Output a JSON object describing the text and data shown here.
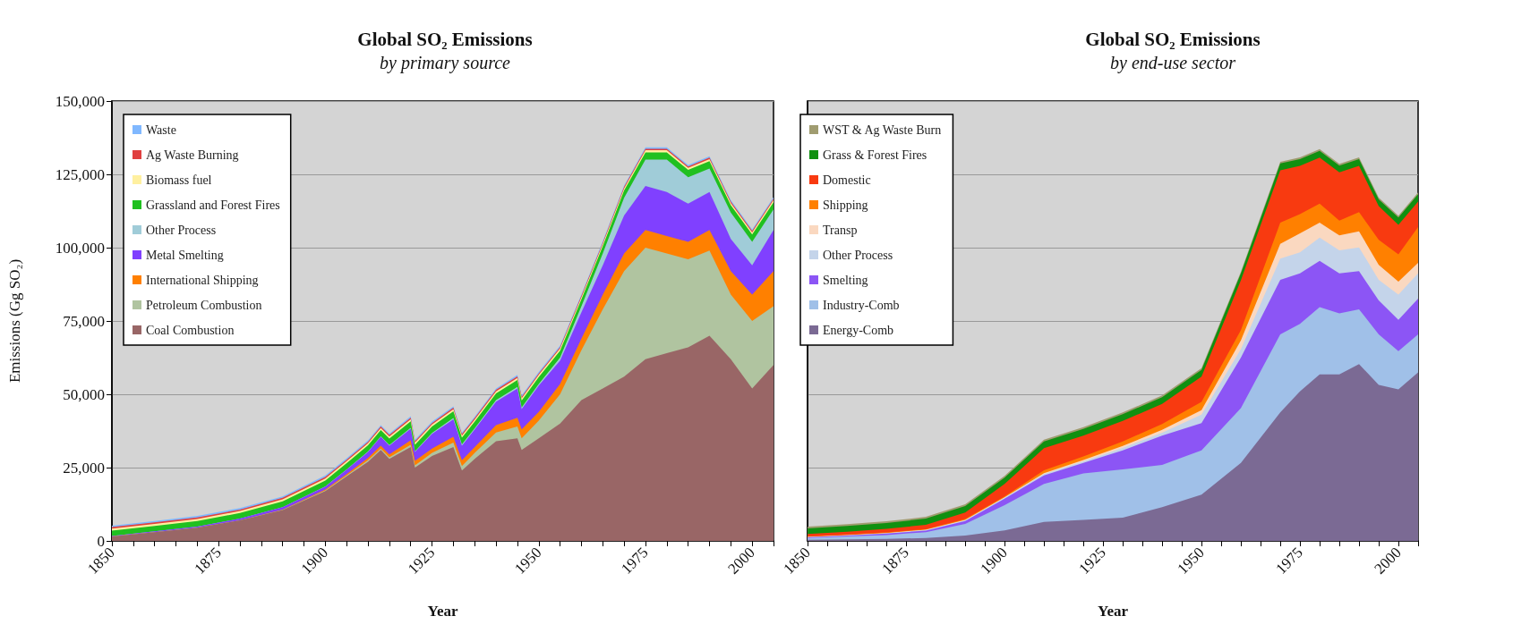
{
  "chart_data": [
    {
      "type": "area",
      "title": "Global SO₂ Emissions",
      "subtitle": "by primary source",
      "xlabel": "Year",
      "ylabel": "Emissions (Gg SO₂)",
      "stacked": true,
      "grid": "y",
      "legend": "top left",
      "xlim": [
        1850,
        2005
      ],
      "ylim": [
        0,
        150000
      ],
      "xticks": [
        {
          "value": 1850,
          "label": "1850"
        },
        {
          "value": 1855,
          "label": null
        },
        {
          "value": 1860,
          "label": null
        },
        {
          "value": 1865,
          "label": null
        },
        {
          "value": 1870,
          "label": null
        },
        {
          "value": 1875,
          "label": "1875"
        },
        {
          "value": 1880,
          "label": null
        },
        {
          "value": 1885,
          "label": null
        },
        {
          "value": 1890,
          "label": null
        },
        {
          "value": 1895,
          "label": null
        },
        {
          "value": 1900,
          "label": "1900"
        },
        {
          "value": 1905,
          "label": null
        },
        {
          "value": 1910,
          "label": null
        },
        {
          "value": 1915,
          "label": null
        },
        {
          "value": 1920,
          "label": null
        },
        {
          "value": 1925,
          "label": "1925"
        },
        {
          "value": 1930,
          "label": null
        },
        {
          "value": 1935,
          "label": null
        },
        {
          "value": 1940,
          "label": null
        },
        {
          "value": 1945,
          "label": null
        },
        {
          "value": 1950,
          "label": "1950"
        },
        {
          "value": 1955,
          "label": null
        },
        {
          "value": 1960,
          "label": null
        },
        {
          "value": 1965,
          "label": null
        },
        {
          "value": 1970,
          "label": null
        },
        {
          "value": 1975,
          "label": "1975"
        },
        {
          "value": 1980,
          "label": null
        },
        {
          "value": 1985,
          "label": null
        },
        {
          "value": 1990,
          "label": null
        },
        {
          "value": 1995,
          "label": null
        },
        {
          "value": 2000,
          "label": "2000"
        },
        {
          "value": 2005,
          "label": null
        }
      ],
      "yticks": [
        {
          "value": 0,
          "label": "0"
        },
        {
          "value": 25000,
          "label": "25,000"
        },
        {
          "value": 50000,
          "label": "50,000"
        },
        {
          "value": 75000,
          "label": "75,000"
        },
        {
          "value": 100000,
          "label": "100,000"
        },
        {
          "value": 125000,
          "label": "125,000"
        },
        {
          "value": 150000,
          "label": "150,000"
        }
      ],
      "x": [
        1850,
        1860,
        1870,
        1880,
        1890,
        1900,
        1905,
        1910,
        1913,
        1915,
        1920,
        1921,
        1925,
        1930,
        1932,
        1935,
        1940,
        1945,
        1946,
        1950,
        1955,
        1960,
        1965,
        1970,
        1975,
        1980,
        1985,
        1990,
        1995,
        2000,
        2005
      ],
      "series": [
        {
          "name": "Coal Combustion",
          "color": "#996666",
          "values": [
            1500,
            3000,
            4500,
            7000,
            10500,
            17000,
            22000,
            27000,
            31000,
            28000,
            32000,
            25000,
            29000,
            32000,
            24000,
            28000,
            34000,
            35000,
            31000,
            35000,
            40000,
            48000,
            52000,
            56000,
            62000,
            64000,
            66000,
            70000,
            62000,
            52000,
            60000
          ]
        },
        {
          "name": "Petroleum Combustion",
          "color": "#b0c4a0",
          "values": [
            0,
            0,
            0,
            0,
            100,
            200,
            300,
            500,
            500,
            500,
            800,
            800,
            1000,
            1500,
            1500,
            2000,
            3000,
            4000,
            4000,
            6000,
            10000,
            17000,
            27000,
            36000,
            38000,
            34000,
            30000,
            29000,
            22000,
            23000,
            20000
          ]
        },
        {
          "name": "International Shipping",
          "color": "#ff8000",
          "values": [
            0,
            0,
            0,
            0,
            100,
            300,
            500,
            800,
            1000,
            1000,
            1500,
            1500,
            1500,
            2000,
            2000,
            2000,
            2500,
            3000,
            3000,
            3000,
            3500,
            4000,
            5000,
            6000,
            6000,
            6000,
            6000,
            7000,
            8000,
            9000,
            12000
          ]
        },
        {
          "name": "Metal Smelting",
          "color": "#8040ff",
          "values": [
            200,
            300,
            400,
            600,
            800,
            1000,
            1500,
            2000,
            3000,
            3000,
            4000,
            3000,
            5000,
            6000,
            5000,
            6000,
            8000,
            10000,
            7000,
            9000,
            8000,
            9000,
            10000,
            13000,
            15000,
            15000,
            13000,
            13000,
            11000,
            10000,
            14000
          ]
        },
        {
          "name": "Other Process",
          "color": "#a0ccd8",
          "values": [
            0,
            0,
            0,
            0,
            0,
            100,
            100,
            200,
            200,
            200,
            300,
            300,
            300,
            400,
            400,
            400,
            500,
            500,
            500,
            500,
            1000,
            2000,
            4000,
            6000,
            9000,
            11000,
            9000,
            8000,
            9000,
            8000,
            7000
          ]
        },
        {
          "name": "Grassland and Forest Fires",
          "color": "#20c020",
          "values": [
            1800,
            1800,
            1900,
            1900,
            2000,
            2000,
            2100,
            2100,
            2100,
            2200,
            2200,
            2200,
            2200,
            2300,
            2300,
            2300,
            2300,
            2400,
            2400,
            2400,
            2400,
            2400,
            2500,
            2500,
            2500,
            2500,
            2500,
            2500,
            2500,
            2500,
            2500
          ]
        },
        {
          "name": "Biomass fuel",
          "color": "#fff0a0",
          "values": [
            700,
            700,
            700,
            700,
            700,
            700,
            700,
            700,
            700,
            700,
            700,
            700,
            700,
            700,
            700,
            700,
            700,
            700,
            700,
            700,
            700,
            700,
            700,
            700,
            700,
            700,
            700,
            700,
            700,
            700,
            700
          ]
        },
        {
          "name": "Ag Waste Burning",
          "color": "#e04040",
          "values": [
            500,
            500,
            500,
            500,
            500,
            500,
            500,
            500,
            500,
            500,
            500,
            500,
            500,
            500,
            500,
            500,
            500,
            500,
            500,
            500,
            500,
            500,
            500,
            500,
            500,
            500,
            500,
            500,
            500,
            500,
            500
          ]
        },
        {
          "name": "Waste",
          "color": "#80b8ff",
          "values": [
            500,
            500,
            500,
            500,
            500,
            500,
            500,
            500,
            500,
            500,
            500,
            500,
            500,
            500,
            500,
            500,
            500,
            500,
            500,
            500,
            500,
            500,
            500,
            500,
            500,
            500,
            500,
            500,
            500,
            500,
            500
          ]
        }
      ]
    },
    {
      "type": "area",
      "title": "Global SO₂ Emissions",
      "subtitle": "by end-use sector",
      "xlabel": "Year",
      "stacked": true,
      "grid": "y",
      "legend": "top left",
      "tick_labels": "x",
      "xlim": [
        1850,
        2005
      ],
      "ylim": [
        0,
        150000
      ],
      "xticks": [
        {
          "value": 1850,
          "label": "1850"
        },
        {
          "value": 1855,
          "label": null
        },
        {
          "value": 1860,
          "label": null
        },
        {
          "value": 1865,
          "label": null
        },
        {
          "value": 1870,
          "label": null
        },
        {
          "value": 1875,
          "label": "1875"
        },
        {
          "value": 1880,
          "label": null
        },
        {
          "value": 1885,
          "label": null
        },
        {
          "value": 1890,
          "label": null
        },
        {
          "value": 1895,
          "label": null
        },
        {
          "value": 1900,
          "label": "1900"
        },
        {
          "value": 1905,
          "label": null
        },
        {
          "value": 1910,
          "label": null
        },
        {
          "value": 1915,
          "label": null
        },
        {
          "value": 1920,
          "label": null
        },
        {
          "value": 1925,
          "label": "1925"
        },
        {
          "value": 1930,
          "label": null
        },
        {
          "value": 1935,
          "label": null
        },
        {
          "value": 1940,
          "label": null
        },
        {
          "value": 1945,
          "label": null
        },
        {
          "value": 1950,
          "label": "1950"
        },
        {
          "value": 1955,
          "label": null
        },
        {
          "value": 1960,
          "label": null
        },
        {
          "value": 1965,
          "label": null
        },
        {
          "value": 1970,
          "label": null
        },
        {
          "value": 1975,
          "label": "1975"
        },
        {
          "value": 1980,
          "label": null
        },
        {
          "value": 1985,
          "label": null
        },
        {
          "value": 1990,
          "label": null
        },
        {
          "value": 1995,
          "label": null
        },
        {
          "value": 2000,
          "label": "2000"
        },
        {
          "value": 2005,
          "label": null
        }
      ],
      "x": [
        1850,
        1860,
        1870,
        1880,
        1890,
        1900,
        1910,
        1920,
        1930,
        1940,
        1950,
        1960,
        1970,
        1975,
        1980,
        1985,
        1990,
        1995,
        2000,
        2005
      ],
      "yticks": [
        0,
        25000,
        50000,
        75000,
        100000,
        125000,
        150000
      ],
      "series": [
        {
          "name": "Energy-Comb",
          "color": "#7b6a94",
          "values": [
            400,
            500,
            700,
            1000,
            1800,
            3600,
            6500,
            7200,
            7900,
            11500,
            15800,
            26600,
            43800,
            51000,
            56800,
            56800,
            60300,
            53200,
            51700,
            57500
          ]
        },
        {
          "name": "Industry-Comb",
          "color": "#a0c0e8",
          "values": [
            600,
            1000,
            1300,
            2000,
            4000,
            8600,
            12900,
            15800,
            16500,
            14400,
            15100,
            18700,
            26600,
            23000,
            22900,
            20800,
            18700,
            17200,
            13000,
            12900
          ]
        },
        {
          "name": "Smelting",
          "color": "#8c55f5",
          "values": [
            200,
            300,
            500,
            500,
            1000,
            2200,
            2900,
            3600,
            6500,
            10000,
            9300,
            17200,
            18600,
            17200,
            15800,
            13600,
            13000,
            11600,
            10700,
            12200
          ]
        },
        {
          "name": "Other Process",
          "color": "#c4d4ea",
          "values": [
            100,
            100,
            100,
            200,
            200,
            300,
            500,
            500,
            800,
            1000,
            2900,
            2900,
            7300,
            7200,
            7900,
            7900,
            8100,
            7000,
            8600,
            8600
          ]
        },
        {
          "name": "Transp",
          "color": "#fad8c0",
          "values": [
            100,
            100,
            100,
            100,
            200,
            200,
            300,
            500,
            700,
            1000,
            1500,
            3000,
            5000,
            6500,
            5100,
            5100,
            5500,
            5100,
            4400,
            3600
          ]
        },
        {
          "name": "Shipping",
          "color": "#ff8000",
          "values": [
            100,
            100,
            200,
            200,
            300,
            300,
            1000,
            1200,
            1500,
            2000,
            2800,
            3500,
            7200,
            6500,
            6500,
            5000,
            6500,
            8600,
            9300,
            12200
          ]
        },
        {
          "name": "Domestic",
          "color": "#f83a10",
          "values": [
            900,
            1000,
            1200,
            1500,
            2200,
            4200,
            7500,
            7100,
            7000,
            6800,
            8600,
            17000,
            17900,
            16500,
            15700,
            16500,
            15800,
            11500,
            10100,
            8700
          ]
        },
        {
          "name": "Grass & Forest Fires",
          "color": "#109010",
          "values": [
            1900,
            2000,
            2000,
            2100,
            2200,
            2200,
            2300,
            2300,
            2300,
            2300,
            2300,
            2300,
            2300,
            2300,
            2300,
            2300,
            2300,
            2300,
            2500,
            2500
          ]
        },
        {
          "name": "WST & Ag Waste Burn",
          "color": "#a09c70",
          "values": [
            600,
            600,
            600,
            600,
            600,
            600,
            600,
            600,
            600,
            600,
            600,
            600,
            600,
            600,
            600,
            600,
            600,
            600,
            600,
            600
          ]
        }
      ]
    }
  ]
}
